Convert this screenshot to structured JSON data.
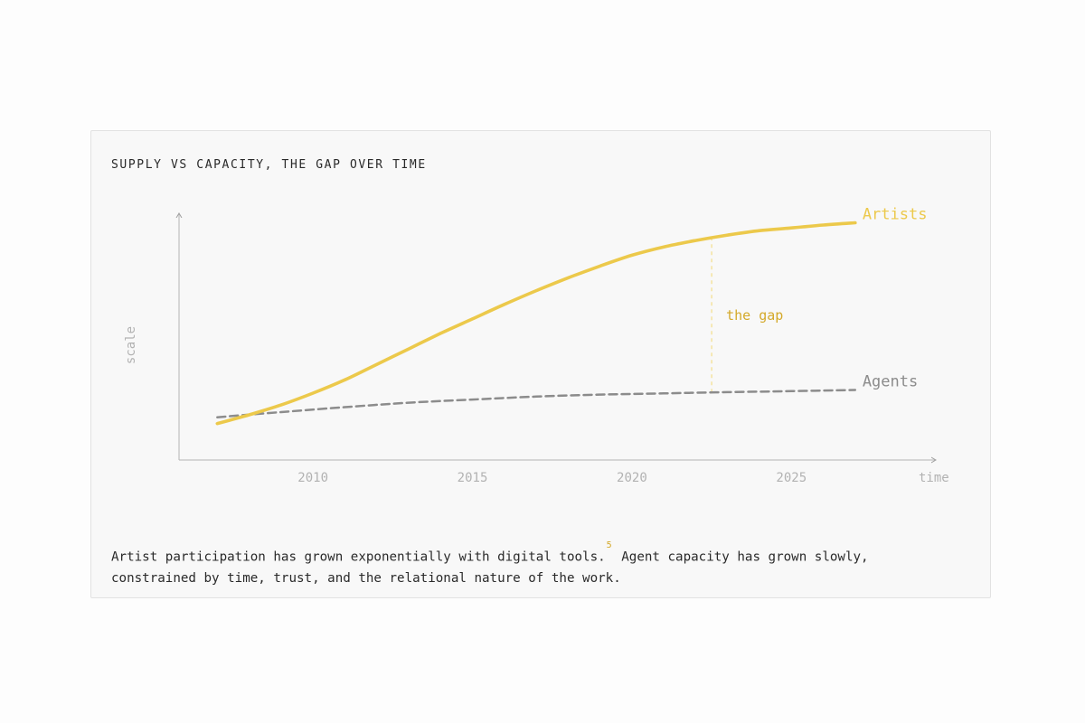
{
  "figure": {
    "title": "SUPPLY VS CAPACITY, THE GAP OVER TIME",
    "caption_part1": "Artist participation has grown exponentially with digital tools.",
    "footnote_ref": "5",
    "caption_part2": " Agent capacity has grown slowly, constrained by time, trust, and the relational nature of the work."
  },
  "colors": {
    "artists": "#ecc94b",
    "agents": "#8c8c8c",
    "axis": "#b5b5b5",
    "tick_label": "#b2b2b2",
    "gap_label": "#d4a92a",
    "gap_line": "#f3dd8a"
  },
  "chart_data": {
    "type": "line",
    "xlabel": "time",
    "ylabel": "scale",
    "xlim": [
      2005.8,
      2029.5
    ],
    "ylim": [
      0,
      100
    ],
    "x_ticks": [
      2010,
      2015,
      2020,
      2025
    ],
    "x_tick_labels": [
      "2010",
      "2015",
      "2020",
      "2025"
    ],
    "y_tick_labels": [],
    "grid": false,
    "series": [
      {
        "name": "Artists",
        "style": "solid",
        "x": [
          2007,
          2008,
          2009,
          2010,
          2011,
          2012,
          2013,
          2014,
          2015,
          2016,
          2017,
          2018,
          2019,
          2020,
          2021,
          2022,
          2023,
          2024,
          2025,
          2026,
          2027
        ],
        "y": [
          14.8,
          18.4,
          22.4,
          27.2,
          32.6,
          38.9,
          45.2,
          51.5,
          57.4,
          63.3,
          68.9,
          74.1,
          78.9,
          83.3,
          86.7,
          89.3,
          91.5,
          93.3,
          94.4,
          95.6,
          96.5
        ]
      },
      {
        "name": "Agents",
        "style": "dashed",
        "x": [
          2007,
          2009,
          2011,
          2013,
          2015,
          2017,
          2019,
          2021,
          2023,
          2025,
          2027
        ],
        "y": [
          17.4,
          19.5,
          21.5,
          23.3,
          24.6,
          25.8,
          26.6,
          27.1,
          27.6,
          28.0,
          28.5
        ]
      }
    ],
    "annotations": [
      {
        "text": "the gap",
        "x": 2022.5,
        "y_from": 27.5,
        "y_to": 90.2
      }
    ]
  }
}
